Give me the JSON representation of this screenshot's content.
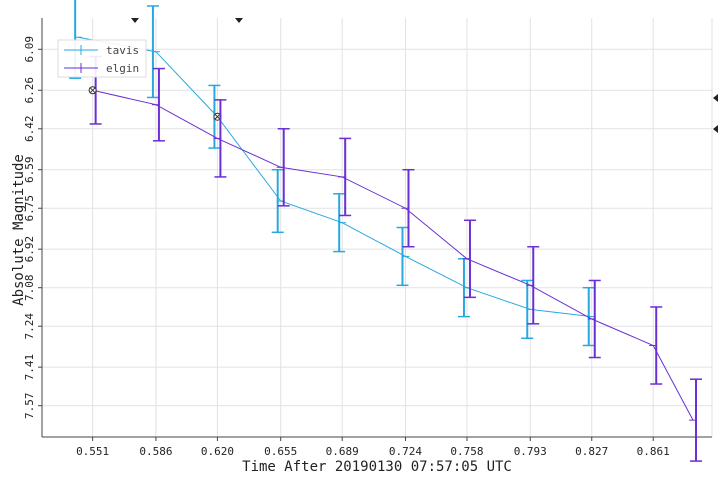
{
  "chart_data": {
    "type": "line",
    "title": "",
    "xlabel": "Time After 20190130 07:57:05 UTC",
    "ylabel": "Absolute Magnitude",
    "x_ticks": [
      "0.551",
      "0.586",
      "0.620",
      "0.655",
      "0.689",
      "0.724",
      "0.758",
      "0.793",
      "0.827",
      "0.861"
    ],
    "y_ticks": [
      "6.09",
      "6.26",
      "6.42",
      "6.59",
      "6.75",
      "6.92",
      "7.08",
      "7.24",
      "7.41",
      "7.57"
    ],
    "xlim": [
      0.523,
      0.8935
    ],
    "ylim": [
      7.7,
      5.96
    ],
    "y_inverted": true,
    "grid": true,
    "legend_position": "top-left",
    "series": [
      {
        "name": "tavis",
        "color": "#29a8e0",
        "x": [
          0.543,
          0.586,
          0.62,
          0.655,
          0.689,
          0.724,
          0.758,
          0.793,
          0.827
        ],
        "y": [
          6.04,
          6.1,
          6.37,
          6.72,
          6.81,
          6.95,
          7.08,
          7.17,
          7.2
        ],
        "err": [
          0.17,
          0.19,
          0.13,
          0.13,
          0.12,
          0.12,
          0.12,
          0.12,
          0.12
        ],
        "marked": [
          false,
          false,
          true,
          false,
          false,
          false,
          false,
          false,
          false
        ]
      },
      {
        "name": "elgin",
        "color": "#6a2fd6",
        "x": [
          0.551,
          0.586,
          0.62,
          0.655,
          0.689,
          0.724,
          0.758,
          0.793,
          0.827,
          0.861,
          0.883
        ],
        "y": [
          6.26,
          6.32,
          6.46,
          6.58,
          6.62,
          6.75,
          6.96,
          7.07,
          7.21,
          7.32,
          7.63
        ],
        "err": [
          0.14,
          0.15,
          0.16,
          0.16,
          0.16,
          0.16,
          0.16,
          0.16,
          0.16,
          0.16,
          0.17
        ],
        "marked": [
          true,
          false,
          false,
          false,
          false,
          false,
          false,
          false,
          false,
          false,
          false
        ]
      }
    ]
  }
}
